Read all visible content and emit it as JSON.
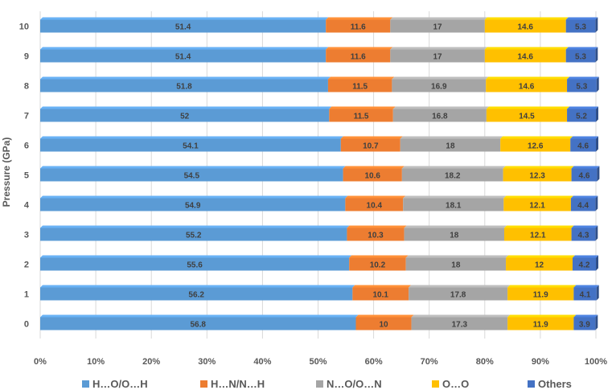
{
  "chart_data": {
    "type": "bar",
    "orientation": "horizontal",
    "stacked": "percent",
    "ylabel": "Pressure (GPa)",
    "xlabel": "",
    "xlim": [
      0,
      100
    ],
    "x_ticks": [
      "0%",
      "10%",
      "20%",
      "30%",
      "40%",
      "50%",
      "60%",
      "70%",
      "80%",
      "90%",
      "100%"
    ],
    "grid": "vertical",
    "legend_position": "bottom",
    "categories": [
      "0",
      "1",
      "2",
      "3",
      "4",
      "5",
      "6",
      "7",
      "8",
      "9",
      "10"
    ],
    "series": [
      {
        "name": "H…O/O…H",
        "color": "#5B9BD5",
        "label_color": "#404040",
        "values": [
          56.8,
          56.2,
          55.6,
          55.2,
          54.9,
          54.5,
          54.1,
          52,
          51.8,
          51.4,
          51.4
        ]
      },
      {
        "name": "H…N/N…H",
        "color": "#ED7D31",
        "label_color": "#404040",
        "values": [
          10,
          10.1,
          10.2,
          10.3,
          10.4,
          10.6,
          10.7,
          11.5,
          11.5,
          11.6,
          11.6
        ]
      },
      {
        "name": "N…O/O…N",
        "color": "#A5A5A5",
        "label_color": "#404040",
        "values": [
          17.3,
          17.8,
          18,
          18,
          18.1,
          18.2,
          18,
          16.8,
          16.9,
          17,
          17
        ]
      },
      {
        "name": "O…O",
        "color": "#FFC000",
        "label_color": "#404040",
        "values": [
          11.9,
          11.9,
          12,
          12.1,
          12.1,
          12.3,
          12.6,
          14.5,
          14.6,
          14.6,
          14.6
        ]
      },
      {
        "name": "Others",
        "color": "#4472C4",
        "label_color": "#404040",
        "values": [
          3.9,
          4.1,
          4.2,
          4.3,
          4.4,
          4.6,
          4.6,
          5.2,
          5.3,
          5.3,
          5.3
        ]
      }
    ]
  }
}
